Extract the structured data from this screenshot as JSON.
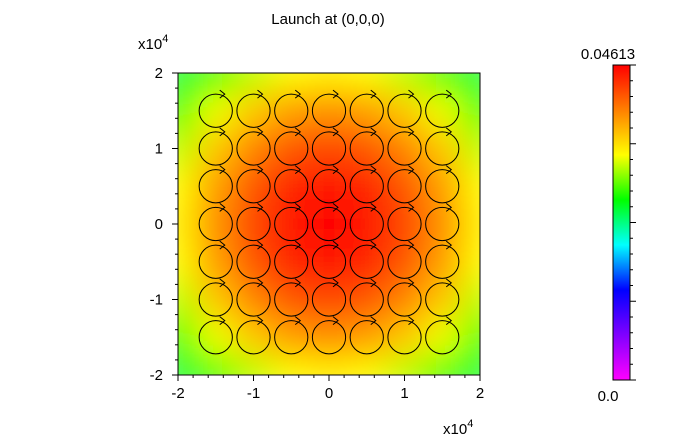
{
  "chart_data": {
    "type": "heatmap",
    "title": "Launch at (0,0,0)",
    "x_multiplier": {
      "text": "x10",
      "exponent": "4"
    },
    "y_multiplier": {
      "text": "x10",
      "exponent": "4"
    },
    "xlim": [
      -2,
      2
    ],
    "ylim": [
      -2,
      2
    ],
    "xticks": [
      -2,
      -1,
      0,
      1,
      2
    ],
    "yticks": [
      -2,
      -1,
      0,
      1,
      2
    ],
    "x": [
      -2,
      -1.5,
      -1,
      -0.5,
      0,
      0.5,
      1,
      1.5,
      2
    ],
    "y": [
      2,
      1.5,
      1,
      0.5,
      0,
      -0.5,
      -1,
      -1.5,
      -2
    ],
    "z": [
      [
        0.0249,
        0.0284,
        0.0313,
        0.0332,
        0.0338,
        0.0332,
        0.0313,
        0.0284,
        0.0249
      ],
      [
        0.0284,
        0.0325,
        0.0358,
        0.038,
        0.0387,
        0.038,
        0.0358,
        0.0325,
        0.0284
      ],
      [
        0.0313,
        0.0358,
        0.0394,
        0.0418,
        0.0426,
        0.0418,
        0.0394,
        0.0358,
        0.0313
      ],
      [
        0.0332,
        0.038,
        0.0418,
        0.0443,
        0.0451,
        0.0443,
        0.0418,
        0.038,
        0.0332
      ],
      [
        0.0338,
        0.0387,
        0.0426,
        0.0451,
        0.046,
        0.0451,
        0.0426,
        0.0387,
        0.0338
      ],
      [
        0.0332,
        0.038,
        0.0418,
        0.0443,
        0.0451,
        0.0443,
        0.0418,
        0.038,
        0.0332
      ],
      [
        0.0313,
        0.0358,
        0.0394,
        0.0418,
        0.0426,
        0.0418,
        0.0394,
        0.0358,
        0.0313
      ],
      [
        0.0284,
        0.0325,
        0.0358,
        0.038,
        0.0387,
        0.038,
        0.0358,
        0.0325,
        0.0284
      ],
      [
        0.0249,
        0.0284,
        0.0313,
        0.0332,
        0.0338,
        0.0332,
        0.0313,
        0.0284,
        0.0249
      ]
    ],
    "zlim": [
      0,
      0.04613
    ],
    "zticks": [
      {
        "value": 0,
        "label": "0.0"
      },
      {
        "value": 0.04613,
        "label": "0.04613"
      }
    ],
    "colormap": [
      "#ff00ff",
      "#8000ff",
      "#0000ff",
      "#00ffff",
      "#00ff00",
      "#ffff00",
      "#ff8000",
      "#ff0000"
    ],
    "orbits": {
      "x": [
        -1.5,
        -1,
        -0.5,
        0,
        0.5,
        1,
        1.5
      ],
      "y": [
        1.5,
        1,
        0.5,
        0,
        -0.5,
        -1,
        -1.5
      ],
      "radius": 0.22
    }
  }
}
